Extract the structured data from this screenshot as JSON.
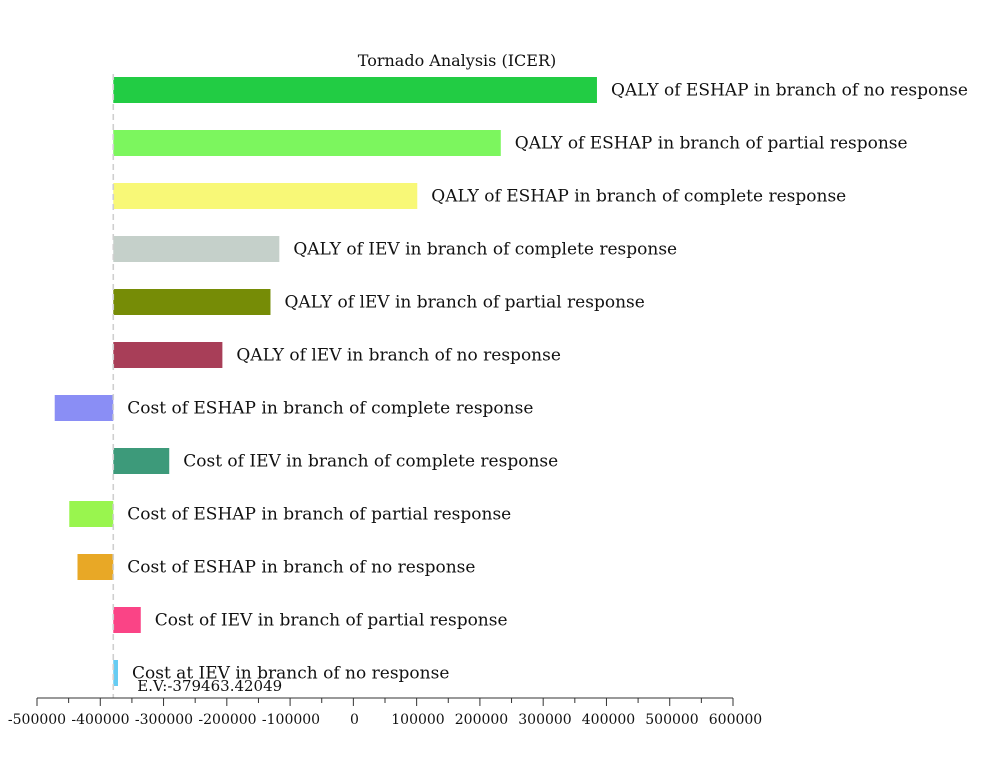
{
  "chart_data": {
    "type": "bar",
    "orientation": "horizontal",
    "title": "Tornado Analysis (ICER)",
    "xlabel": "",
    "ylabel": "",
    "xlim": [
      -500000,
      600000
    ],
    "grid": false,
    "legend": "none",
    "expected_value": -379463.42049,
    "expected_value_label": "E.V:-379463.42049",
    "x_ticks": [
      -500000,
      -400000,
      -300000,
      -200000,
      -100000,
      0,
      100000,
      200000,
      300000,
      400000,
      500000,
      600000
    ],
    "x_tick_labels": [
      "-500000",
      "-400000",
      "-300000",
      "-200000",
      "-100000",
      "0",
      "100000",
      "200000",
      "300000",
      "400000",
      "500000",
      "600000"
    ],
    "bars": [
      {
        "label": "QALY of ESHAP in branch of no response",
        "low": -379463,
        "high": 385000,
        "color": "#22cc44"
      },
      {
        "label": "QALY of ESHAP in branch of partial response",
        "low": -379463,
        "high": 233000,
        "color": "#7cf65e"
      },
      {
        "label": "QALY of ESHAP in branch of complete response",
        "low": -379463,
        "high": 101000,
        "color": "#f8f877"
      },
      {
        "label": "QALY of IEV in branch of complete response",
        "low": -379463,
        "high": -117000,
        "color": "#c5d0ca"
      },
      {
        "label": "QALY of lEV in branch of partial response",
        "low": -379463,
        "high": -131000,
        "color": "#768c06"
      },
      {
        "label": "QALY of lEV in branch of no response",
        "low": -379463,
        "high": -207000,
        "color": "#a83e58"
      },
      {
        "label": "Cost of ESHAP in branch of complete response",
        "low": -472000,
        "high": -379463,
        "color": "#8a8ef5"
      },
      {
        "label": "Cost of IEV in branch of complete response",
        "low": -379463,
        "high": -291000,
        "color": "#3d9a7a"
      },
      {
        "label": "Cost of ESHAP in branch of partial response",
        "low": -449000,
        "high": -379463,
        "color": "#99f54e"
      },
      {
        "label": "Cost of ESHAP in branch of no response",
        "low": -436000,
        "high": -379463,
        "color": "#e8a826"
      },
      {
        "label": "Cost of IEV in branch of partial response",
        "low": -379463,
        "high": -336000,
        "color": "#fa4486"
      },
      {
        "label": "Cost at IEV in branch of no response",
        "low": -379463,
        "high": -372000,
        "color": "#66ccf2"
      }
    ]
  }
}
